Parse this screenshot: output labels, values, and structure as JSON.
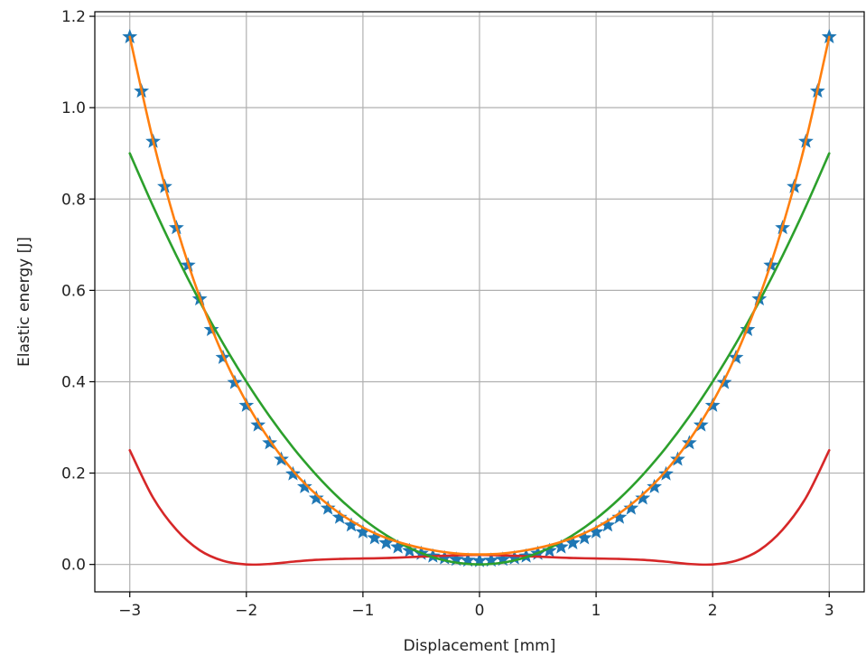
{
  "chart_data": {
    "type": "line",
    "title": "",
    "xlabel": "Displacement [mm]",
    "ylabel": "Elastic energy [J]",
    "xlim": [
      -3.3,
      3.3
    ],
    "ylim": [
      -0.06,
      1.21
    ],
    "grid": true,
    "legend": "none",
    "x_ticks": [
      -3,
      -2,
      -1,
      0,
      1,
      2,
      3
    ],
    "x_tick_labels": [
      "−3",
      "−2",
      "−1",
      "0",
      "1",
      "2",
      "3"
    ],
    "y_ticks": [
      0.0,
      0.2,
      0.4,
      0.6,
      0.8,
      1.0,
      1.2
    ],
    "y_tick_labels": [
      "0.0",
      "0.2",
      "0.4",
      "0.6",
      "0.8",
      "1.0",
      "1.2"
    ],
    "x": [
      -3.0,
      -2.8,
      -2.6,
      -2.4,
      -2.2,
      -2.0,
      -1.8,
      -1.6,
      -1.4,
      -1.2,
      -1.0,
      -0.8,
      -0.6,
      -0.4,
      -0.2,
      0.0,
      0.2,
      0.4,
      0.6,
      0.8,
      1.0,
      1.2,
      1.4,
      1.6,
      1.8,
      2.0,
      2.2,
      2.4,
      2.6,
      2.8,
      3.0
    ],
    "series": [
      {
        "color": "#1f77b4",
        "style": "stars",
        "x": [
          -3.0,
          -2.9,
          -2.8,
          -2.7,
          -2.6,
          -2.5,
          -2.4,
          -2.3,
          -2.2,
          -2.1,
          -2.0,
          -1.9,
          -1.8,
          -1.7,
          -1.6,
          -1.5,
          -1.4,
          -1.3,
          -1.2,
          -1.1,
          -1.0,
          -0.9,
          -0.8,
          -0.7,
          -0.6,
          -0.5,
          -0.4,
          -0.3,
          -0.2,
          -0.1,
          0.0,
          0.1,
          0.2,
          0.3,
          0.4,
          0.5,
          0.6,
          0.7,
          0.8,
          0.9,
          1.0,
          1.1,
          1.2,
          1.3,
          1.4,
          1.5,
          1.6,
          1.7,
          1.8,
          1.9,
          2.0,
          2.1,
          2.2,
          2.3,
          2.4,
          2.5,
          2.6,
          2.7,
          2.8,
          2.9,
          3.0
        ],
        "values": [
          1.155,
          1.036,
          0.926,
          0.827,
          0.737,
          0.655,
          0.581,
          0.514,
          0.453,
          0.398,
          0.348,
          0.305,
          0.266,
          0.23,
          0.198,
          0.17,
          0.145,
          0.123,
          0.103,
          0.086,
          0.071,
          0.058,
          0.047,
          0.038,
          0.03,
          0.024,
          0.018,
          0.014,
          0.011,
          0.009,
          0.008,
          0.009,
          0.011,
          0.014,
          0.018,
          0.024,
          0.03,
          0.038,
          0.047,
          0.058,
          0.071,
          0.086,
          0.103,
          0.123,
          0.145,
          0.17,
          0.198,
          0.23,
          0.266,
          0.305,
          0.348,
          0.398,
          0.453,
          0.514,
          0.581,
          0.655,
          0.737,
          0.827,
          0.926,
          1.036,
          1.155
        ]
      },
      {
        "color": "#ff7f0e",
        "style": "line",
        "values": [
          1.155,
          0.928,
          0.74,
          0.585,
          0.458,
          0.355,
          0.272,
          0.205,
          0.153,
          0.112,
          0.081,
          0.058,
          0.042,
          0.031,
          0.024,
          0.022,
          0.024,
          0.031,
          0.042,
          0.058,
          0.081,
          0.112,
          0.153,
          0.205,
          0.272,
          0.355,
          0.458,
          0.585,
          0.74,
          0.928,
          1.155
        ]
      },
      {
        "color": "#2ca02c",
        "style": "line",
        "values": [
          0.9,
          0.784,
          0.676,
          0.576,
          0.484,
          0.4,
          0.324,
          0.256,
          0.196,
          0.144,
          0.1,
          0.064,
          0.036,
          0.016,
          0.004,
          0.0,
          0.004,
          0.016,
          0.036,
          0.064,
          0.1,
          0.144,
          0.196,
          0.256,
          0.324,
          0.4,
          0.484,
          0.576,
          0.676,
          0.784,
          0.9
        ]
      },
      {
        "color": "#d62728",
        "style": "line",
        "values": [
          0.25,
          0.146,
          0.076,
          0.031,
          0.008,
          0.0,
          0.001,
          0.006,
          0.01,
          0.012,
          0.013,
          0.014,
          0.016,
          0.018,
          0.02,
          0.021,
          0.02,
          0.018,
          0.016,
          0.014,
          0.013,
          0.012,
          0.01,
          0.006,
          0.001,
          0.0,
          0.008,
          0.031,
          0.076,
          0.146,
          0.25
        ]
      }
    ]
  }
}
